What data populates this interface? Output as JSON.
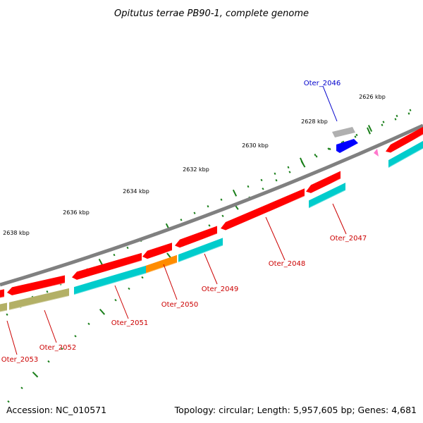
{
  "title": "Opitutus terrae PB90-1, complete genome",
  "footer": {
    "accession": "Accession: NC_010571",
    "summary": "Topology: circular; Length: 5,957,605 bp; Genes: 4,681"
  },
  "colors": {
    "backbone": "#808080",
    "tick": "#1a7f1a",
    "label_red": "#cc0000",
    "label_blue": "#0000cc",
    "gene_red": "#ff0000",
    "gene_cyan": "#00cccc",
    "gene_orange": "#ff8c00",
    "gene_olive": "#b3b066",
    "gene_gray": "#b0b0b0",
    "gene_blue": "#0000ff",
    "gene_pink": "#ff77cc"
  },
  "scale_labels": [
    "2626 kbp",
    "2628 kbp",
    "2630 kbp",
    "2632 kbp",
    "2634 kbp",
    "2636 kbp",
    "2638 kbp"
  ],
  "gene_labels": [
    "Oter_2046",
    "Oter_2047",
    "Oter_2048",
    "Oter_2049",
    "Oter_2050",
    "Oter_2051",
    "Oter_2052",
    "Oter_2053"
  ]
}
